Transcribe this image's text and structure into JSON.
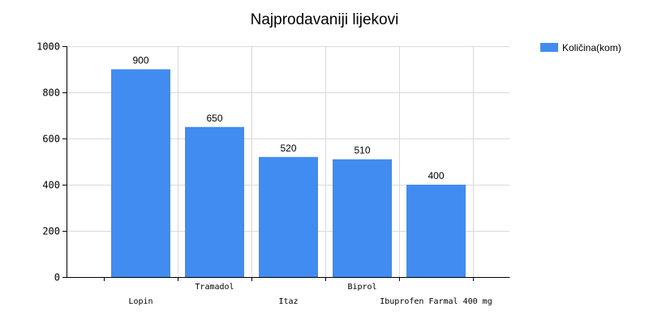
{
  "chart_data": {
    "type": "bar",
    "title": "Najprodavaniji lijekovi",
    "xlabel": "",
    "ylabel": "",
    "categories": [
      "Lopin",
      "Tramadol",
      "Itaz",
      "Biprol",
      "Ibuprofen Farmal 400 mg"
    ],
    "series": [
      {
        "name": "Količina(kom)",
        "values": [
          900,
          650,
          520,
          510,
          400
        ],
        "color": "#418cf0"
      }
    ],
    "ylim": [
      0,
      1000
    ],
    "yticks": [
      0,
      200,
      400,
      600,
      800,
      1000
    ],
    "grid": true,
    "legend_position": "top-right"
  }
}
